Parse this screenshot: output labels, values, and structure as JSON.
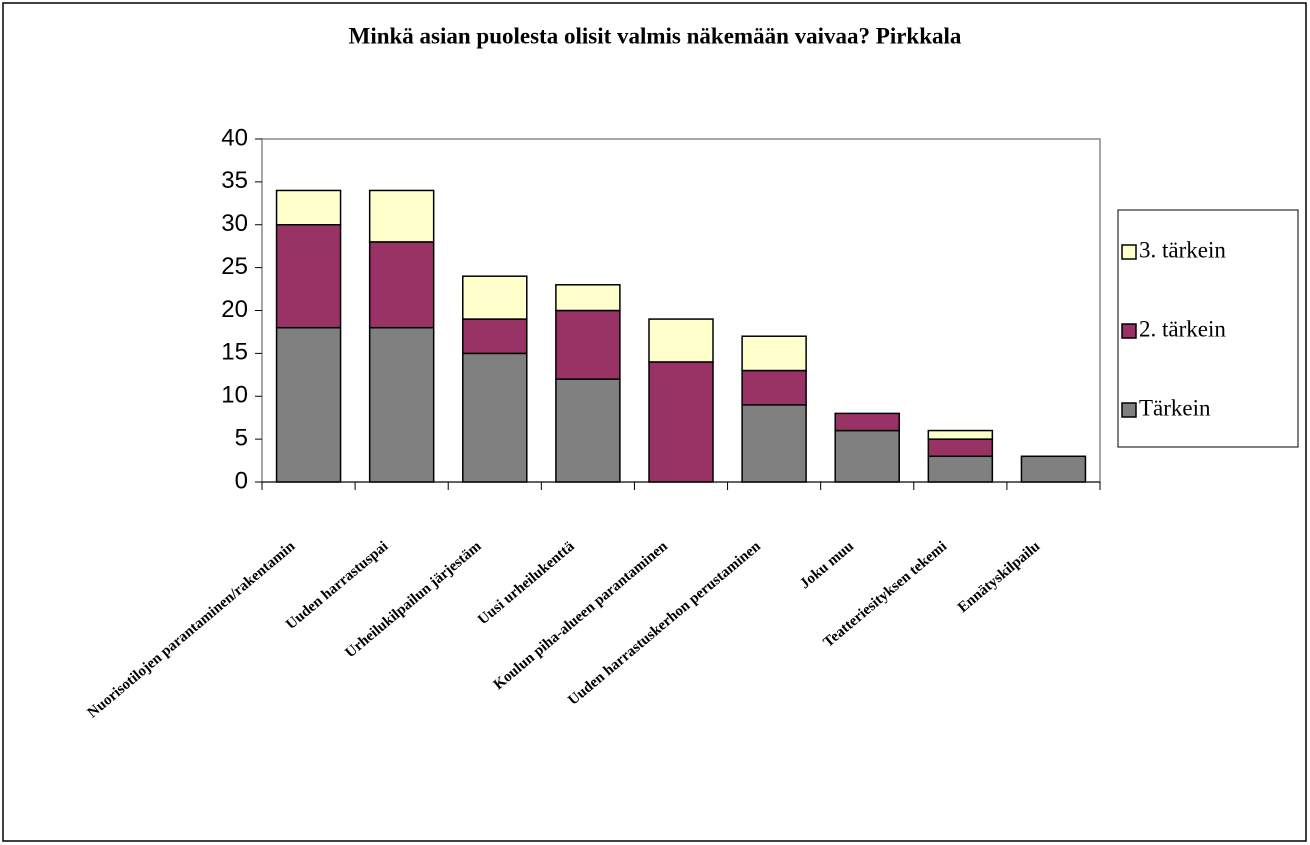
{
  "chart_data": {
    "type": "stacked_bar",
    "title": "Minkä asian puolesta olisit valmis näkemään vaivaa? Pirkkala",
    "categories": [
      "Nuorisotilojen parantaminen/rakentamin",
      "Uuden harrastuspai",
      "Urheilukilpailun järjestäm",
      "Uusi urheilukenttä",
      "Koulun piha-alueen parantaminen",
      "Uuden harrastuskerhon perustaminen",
      "Joku muu",
      "Teatteriesityksen tekemi",
      "Ennätyskilpailu"
    ],
    "series": [
      {
        "name": "Tärkein",
        "color": "#808080",
        "values": [
          18,
          18,
          15,
          12,
          0,
          9,
          6,
          3,
          3
        ]
      },
      {
        "name": "2. tärkein",
        "color": "#993366",
        "values": [
          12,
          10,
          4,
          8,
          14,
          4,
          2,
          2,
          0
        ]
      },
      {
        "name": "3. tärkein",
        "color": "#FFFFCC",
        "values": [
          4,
          6,
          5,
          3,
          5,
          4,
          0,
          1,
          0
        ]
      }
    ],
    "ylim": [
      0,
      40
    ],
    "yticks": [
      0,
      5,
      10,
      15,
      20,
      25,
      30,
      35,
      40
    ],
    "legend": "right"
  }
}
